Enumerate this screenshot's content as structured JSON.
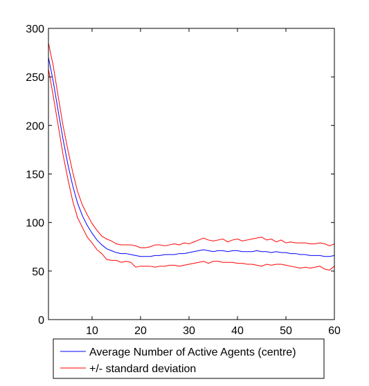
{
  "chart_data": {
    "type": "line",
    "xlim": [
      1,
      60
    ],
    "ylim": [
      0,
      300
    ],
    "x_ticks": [
      10,
      20,
      30,
      40,
      50,
      60
    ],
    "y_ticks": [
      0,
      50,
      100,
      150,
      200,
      250,
      300
    ],
    "grid": false,
    "legend_placement": "bottom",
    "x": [
      1,
      2,
      3,
      4,
      5,
      6,
      7,
      8,
      9,
      10,
      11,
      12,
      13,
      14,
      15,
      16,
      17,
      18,
      19,
      20,
      21,
      22,
      23,
      24,
      25,
      26,
      27,
      28,
      29,
      30,
      31,
      32,
      33,
      34,
      35,
      36,
      37,
      38,
      39,
      40,
      41,
      42,
      43,
      44,
      45,
      46,
      47,
      48,
      49,
      50,
      51,
      52,
      53,
      54,
      55,
      56,
      57,
      58,
      59,
      60
    ],
    "series": [
      {
        "name": "Average Number of Active Agents (centre)",
        "color": "#0000ff",
        "values": [
          270,
          245,
          215,
          186,
          160,
          138,
          120,
          107,
          97,
          89,
          82,
          77,
          73,
          71,
          69,
          68,
          68,
          67,
          66,
          65,
          65,
          65,
          66,
          66,
          67,
          67,
          67,
          68,
          68,
          69,
          70,
          71,
          72,
          71,
          70,
          71,
          71,
          70,
          71,
          71,
          70,
          70,
          70,
          71,
          70,
          70,
          69,
          70,
          69,
          69,
          68,
          68,
          67,
          67,
          66,
          66,
          66,
          65,
          65,
          66
        ]
      },
      {
        "name": "+/- standard deviation",
        "color": "#ff0000",
        "values": [
          285,
          261,
          230,
          200,
          175,
          152,
          132,
          118,
          108,
          99,
          92,
          86,
          83,
          81,
          78,
          77,
          77,
          77,
          76,
          74,
          74,
          75,
          77,
          77,
          76,
          77,
          78,
          77,
          79,
          78,
          80,
          82,
          84,
          82,
          81,
          82,
          83,
          80,
          82,
          83,
          81,
          82,
          83,
          84,
          85,
          82,
          83,
          80,
          82,
          79,
          80,
          79,
          79,
          79,
          78,
          78,
          79,
          78,
          76,
          78
        ]
      },
      {
        "name": "",
        "color": "#ff0000",
        "values": [
          258,
          230,
          200,
          170,
          145,
          122,
          105,
          95,
          85,
          79,
          72,
          68,
          62,
          61,
          61,
          59,
          60,
          59,
          54,
          55,
          55,
          55,
          54,
          55,
          55,
          56,
          56,
          55,
          56,
          57,
          58,
          59,
          60,
          58,
          60,
          60,
          59,
          59,
          59,
          58,
          58,
          57,
          57,
          56,
          55,
          57,
          56,
          57,
          57,
          56,
          55,
          54,
          53,
          54,
          53,
          54,
          55,
          52,
          51,
          55
        ]
      }
    ],
    "legend": [
      {
        "label": "Average Number of Active Agents (centre)",
        "color": "#0000ff"
      },
      {
        "label": "+/- standard deviation",
        "color": "#ff0000"
      }
    ]
  }
}
